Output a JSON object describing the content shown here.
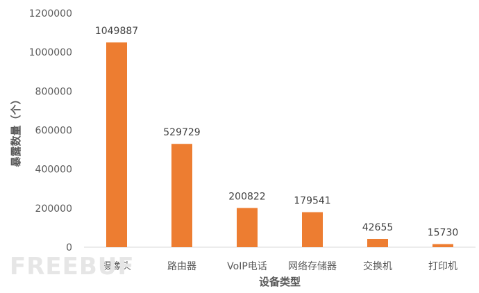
{
  "chart_data": {
    "type": "bar",
    "categories": [
      "摄像头",
      "路由器",
      "VoIP电话",
      "网络存储器",
      "交换机",
      "打印机"
    ],
    "values": [
      1049887,
      529729,
      200822,
      179541,
      42655,
      15730
    ],
    "xlabel": "设备类型",
    "ylabel": "暴露数量（个）",
    "ylim": [
      0,
      1200000
    ],
    "yticks": [
      0,
      200000,
      400000,
      600000,
      800000,
      1000000,
      1200000
    ],
    "grid": false,
    "bar_color": "#ED7D31",
    "axis_color": "#D9D9D9",
    "text_color": "#595959"
  },
  "watermark": "FREEBUF"
}
